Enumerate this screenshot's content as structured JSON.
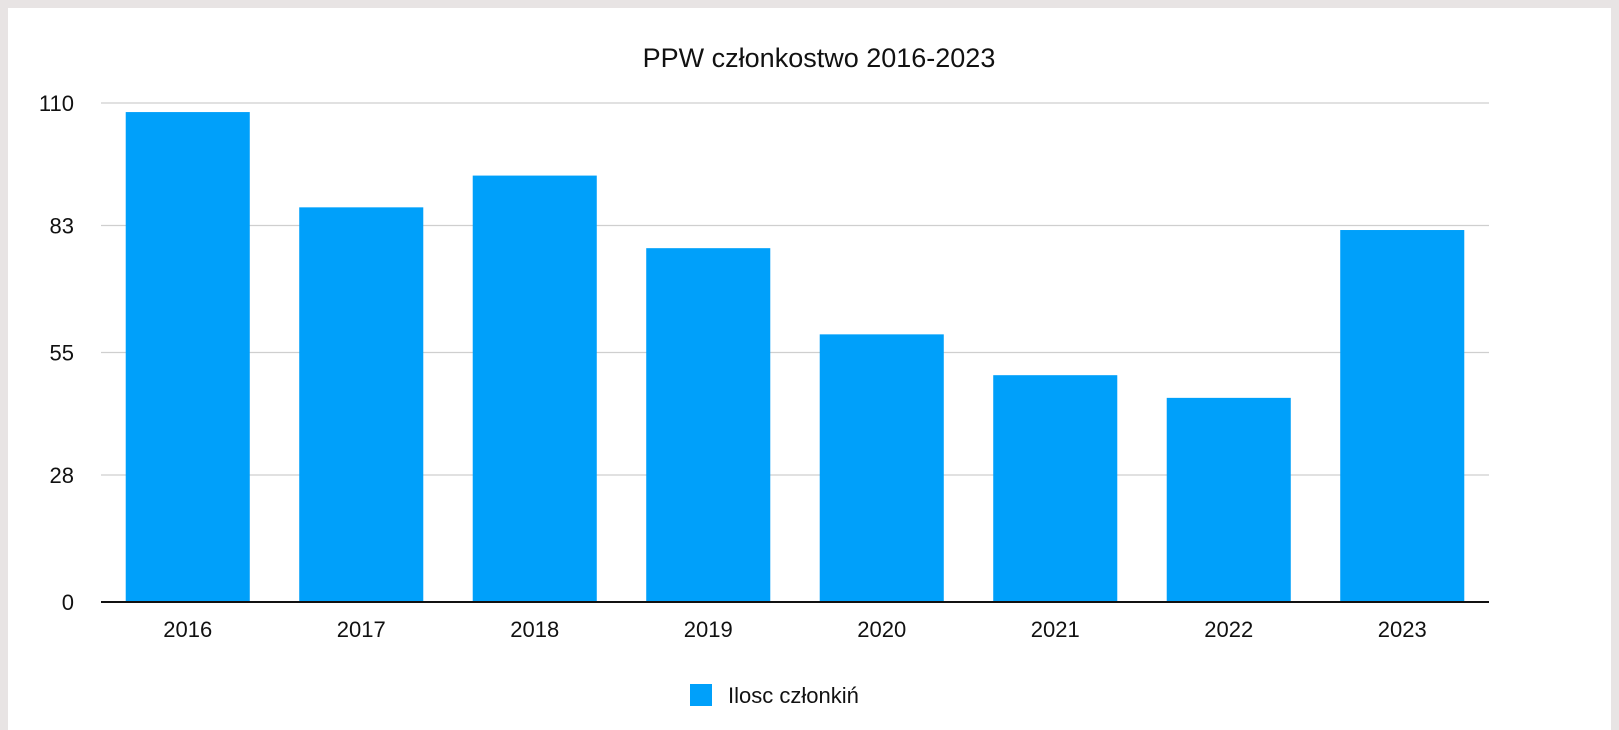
{
  "chart_data": {
    "type": "bar",
    "title": "PPW członkostwo 2016-2023",
    "categories": [
      "2016",
      "2017",
      "2018",
      "2019",
      "2020",
      "2021",
      "2022",
      "2023"
    ],
    "series": [
      {
        "name": "Ilosc członkiń",
        "values": [
          108,
          87,
          94,
          78,
          59,
          50,
          45,
          82
        ]
      }
    ],
    "yticks": [
      "0",
      "28",
      "55",
      "83",
      "110"
    ],
    "ylim": [
      0,
      110
    ],
    "xlabel": "",
    "ylabel": "",
    "grid": true,
    "legend_position": "bottom",
    "bar_color": "#00a0fa"
  }
}
